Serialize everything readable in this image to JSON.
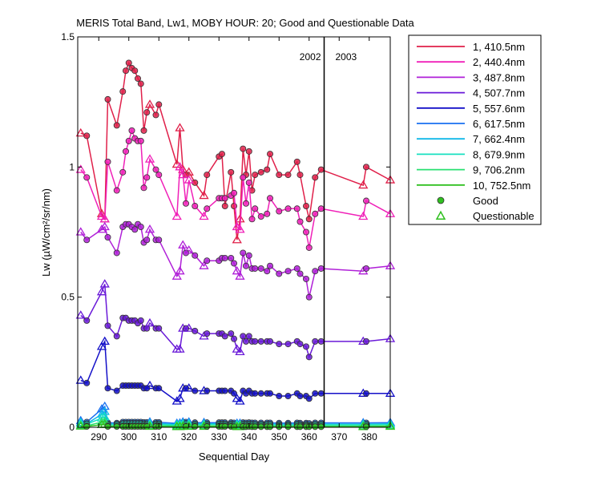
{
  "chart_data": {
    "type": "line",
    "title": "MERIS Total Band,  Lw1, MOBY HOUR: 20;  Good and Questionable Data",
    "xlabel": "Sequential Day",
    "ylabel": "Lw (µW/cm²/sr/nm)",
    "xlim": [
      283,
      387
    ],
    "ylim": [
      0,
      1.5
    ],
    "xticks": [
      290,
      300,
      310,
      320,
      330,
      340,
      350,
      360,
      370,
      380
    ],
    "xtick_labels": [
      "290",
      "300",
      "310",
      "320",
      "330",
      "340",
      "350",
      "360",
      "370",
      "380"
    ],
    "yticks": [
      0,
      0.5,
      1,
      1.5
    ],
    "ytick_labels": [
      "0",
      "0.5",
      "1",
      "1.5"
    ],
    "year_boundary": {
      "x": 365,
      "left_label": "2002",
      "right_label": "2003"
    },
    "x": [
      284,
      286,
      291,
      292,
      293,
      296,
      298,
      299,
      300,
      301,
      302,
      303,
      304,
      305,
      306,
      307,
      309,
      310,
      316,
      317,
      318,
      319,
      320,
      322,
      325,
      326,
      330,
      331,
      332,
      334,
      335,
      336,
      337,
      338,
      339,
      340,
      341,
      342,
      344,
      346,
      347,
      350,
      353,
      356,
      357,
      359,
      360,
      362,
      364,
      378,
      379,
      387
    ],
    "quality": [
      "Q",
      "G",
      "Q",
      "Q",
      "G",
      "G",
      "G",
      "G",
      "G",
      "G",
      "G",
      "G",
      "G",
      "G",
      "G",
      "Q",
      "G",
      "G",
      "Q",
      "Q",
      "Q",
      "G",
      "Q",
      "G",
      "Q",
      "G",
      "G",
      "G",
      "G",
      "G",
      "G",
      "Q",
      "Q",
      "G",
      "G",
      "G",
      "G",
      "G",
      "G",
      "G",
      "G",
      "G",
      "G",
      "G",
      "G",
      "G",
      "G",
      "G",
      "G",
      "Q",
      "G",
      "Q"
    ],
    "series": [
      {
        "name": "1, 410.5nm",
        "color": "#e0204a",
        "values": [
          1.13,
          1.12,
          0.82,
          0.8,
          1.26,
          1.16,
          1.29,
          1.37,
          1.4,
          1.38,
          1.37,
          1.34,
          1.32,
          1.14,
          1.21,
          1.24,
          1.2,
          1.24,
          1.01,
          1.15,
          0.99,
          0.97,
          0.98,
          0.94,
          0.89,
          0.97,
          1.04,
          1.05,
          0.85,
          0.98,
          0.85,
          0.72,
          0.8,
          1.07,
          0.97,
          1.06,
          0.91,
          0.97,
          0.98,
          0.99,
          1.05,
          0.97,
          0.97,
          1.02,
          0.97,
          0.85,
          0.8,
          0.96,
          0.99,
          0.93,
          1.0,
          0.95
        ]
      },
      {
        "name": "2, 440.4nm",
        "color": "#f020b8",
        "values": [
          0.99,
          0.96,
          0.81,
          0.8,
          1.02,
          0.91,
          0.98,
          1.06,
          1.1,
          1.14,
          1.11,
          1.1,
          1.1,
          0.92,
          0.96,
          1.03,
          0.99,
          0.97,
          0.81,
          1.0,
          0.97,
          0.86,
          0.95,
          0.85,
          0.81,
          0.84,
          0.88,
          0.88,
          0.88,
          0.89,
          0.9,
          0.77,
          0.76,
          0.96,
          0.86,
          0.94,
          0.8,
          0.84,
          0.81,
          0.82,
          0.88,
          0.83,
          0.84,
          0.84,
          0.79,
          0.75,
          0.69,
          0.82,
          0.84,
          0.81,
          0.87,
          0.82
        ]
      },
      {
        "name": "3, 487.8nm",
        "color": "#b020d8",
        "values": [
          0.75,
          0.72,
          0.76,
          0.77,
          0.73,
          0.67,
          0.77,
          0.78,
          0.78,
          0.77,
          0.76,
          0.78,
          0.77,
          0.71,
          0.72,
          0.76,
          0.72,
          0.72,
          0.58,
          0.6,
          0.7,
          0.67,
          0.68,
          0.66,
          0.62,
          0.64,
          0.64,
          0.65,
          0.65,
          0.65,
          0.63,
          0.6,
          0.58,
          0.67,
          0.62,
          0.66,
          0.61,
          0.61,
          0.61,
          0.6,
          0.62,
          0.59,
          0.6,
          0.61,
          0.59,
          0.57,
          0.5,
          0.6,
          0.61,
          0.6,
          0.61,
          0.62
        ]
      },
      {
        "name": "4, 507.7nm",
        "color": "#6a1ad8",
        "values": [
          0.43,
          0.41,
          0.52,
          0.55,
          0.39,
          0.35,
          0.42,
          0.42,
          0.41,
          0.41,
          0.41,
          0.4,
          0.41,
          0.38,
          0.38,
          0.4,
          0.38,
          0.38,
          0.3,
          0.3,
          0.38,
          0.38,
          0.38,
          0.37,
          0.35,
          0.36,
          0.36,
          0.36,
          0.35,
          0.36,
          0.34,
          0.3,
          0.29,
          0.35,
          0.33,
          0.35,
          0.33,
          0.33,
          0.33,
          0.33,
          0.33,
          0.32,
          0.32,
          0.33,
          0.32,
          0.31,
          0.27,
          0.33,
          0.33,
          0.33,
          0.33,
          0.34
        ]
      },
      {
        "name": "5, 557.6nm",
        "color": "#1410c8",
        "values": [
          0.18,
          0.17,
          0.31,
          0.33,
          0.15,
          0.14,
          0.16,
          0.16,
          0.16,
          0.16,
          0.16,
          0.16,
          0.16,
          0.15,
          0.15,
          0.16,
          0.15,
          0.15,
          0.1,
          0.11,
          0.15,
          0.15,
          0.15,
          0.14,
          0.14,
          0.14,
          0.14,
          0.14,
          0.14,
          0.14,
          0.13,
          0.11,
          0.1,
          0.14,
          0.13,
          0.14,
          0.13,
          0.13,
          0.13,
          0.13,
          0.13,
          0.12,
          0.12,
          0.13,
          0.12,
          0.12,
          0.11,
          0.13,
          0.13,
          0.13,
          0.13,
          0.13
        ]
      },
      {
        "name": "6, 617.5nm",
        "color": "#1870f0",
        "values": [
          0.025,
          0.02,
          0.07,
          0.08,
          0.018,
          0.016,
          0.02,
          0.02,
          0.02,
          0.02,
          0.02,
          0.02,
          0.02,
          0.019,
          0.019,
          0.02,
          0.019,
          0.019,
          0.015,
          0.016,
          0.02,
          0.02,
          0.02,
          0.018,
          0.018,
          0.018,
          0.018,
          0.018,
          0.018,
          0.018,
          0.017,
          0.015,
          0.015,
          0.018,
          0.017,
          0.018,
          0.017,
          0.017,
          0.017,
          0.017,
          0.017,
          0.016,
          0.016,
          0.017,
          0.016,
          0.016,
          0.015,
          0.017,
          0.017,
          0.017,
          0.017,
          0.018
        ]
      },
      {
        "name": "7, 662.4nm",
        "color": "#10b8e8",
        "values": [
          0.018,
          0.014,
          0.05,
          0.06,
          0.013,
          0.012,
          0.015,
          0.015,
          0.015,
          0.015,
          0.015,
          0.015,
          0.015,
          0.014,
          0.014,
          0.015,
          0.014,
          0.014,
          0.011,
          0.012,
          0.015,
          0.015,
          0.015,
          0.013,
          0.013,
          0.013,
          0.013,
          0.013,
          0.013,
          0.013,
          0.012,
          0.011,
          0.011,
          0.013,
          0.012,
          0.013,
          0.012,
          0.012,
          0.012,
          0.012,
          0.012,
          0.011,
          0.011,
          0.012,
          0.011,
          0.011,
          0.01,
          0.012,
          0.012,
          0.012,
          0.012,
          0.013
        ]
      },
      {
        "name": "8, 679.9nm",
        "color": "#18e0c0",
        "values": [
          0.015,
          0.012,
          0.035,
          0.04,
          0.011,
          0.01,
          0.012,
          0.012,
          0.012,
          0.012,
          0.012,
          0.012,
          0.012,
          0.011,
          0.011,
          0.012,
          0.011,
          0.011,
          0.009,
          0.01,
          0.012,
          0.012,
          0.012,
          0.011,
          0.011,
          0.011,
          0.011,
          0.011,
          0.011,
          0.011,
          0.01,
          0.009,
          0.009,
          0.011,
          0.01,
          0.011,
          0.01,
          0.01,
          0.01,
          0.01,
          0.01,
          0.009,
          0.009,
          0.01,
          0.009,
          0.009,
          0.008,
          0.01,
          0.01,
          0.01,
          0.01,
          0.011
        ]
      },
      {
        "name": "9, 706.2nm",
        "color": "#28e070",
        "values": [
          0.008,
          0.006,
          0.02,
          0.022,
          0.006,
          0.005,
          0.006,
          0.006,
          0.006,
          0.006,
          0.006,
          0.006,
          0.006,
          0.006,
          0.006,
          0.006,
          0.006,
          0.006,
          0.005,
          0.005,
          0.006,
          0.006,
          0.006,
          0.006,
          0.006,
          0.006,
          0.006,
          0.006,
          0.006,
          0.006,
          0.005,
          0.005,
          0.005,
          0.006,
          0.005,
          0.006,
          0.005,
          0.005,
          0.005,
          0.005,
          0.005,
          0.005,
          0.005,
          0.005,
          0.005,
          0.005,
          0.004,
          0.005,
          0.005,
          0.005,
          0.005,
          0.006
        ]
      },
      {
        "name": "10, 752.5nm",
        "color": "#30c020",
        "values": [
          0.004,
          0.003,
          0.01,
          0.012,
          0.003,
          0.003,
          0.003,
          0.003,
          0.003,
          0.003,
          0.003,
          0.003,
          0.003,
          0.003,
          0.003,
          0.003,
          0.003,
          0.003,
          0.002,
          0.002,
          0.003,
          0.003,
          0.003,
          0.003,
          0.003,
          0.003,
          0.003,
          0.003,
          0.003,
          0.003,
          0.002,
          0.002,
          0.002,
          0.003,
          0.002,
          0.003,
          0.002,
          0.002,
          0.002,
          0.002,
          0.002,
          0.002,
          0.002,
          0.002,
          0.002,
          0.002,
          0.002,
          0.002,
          0.002,
          0.002,
          0.002,
          0.003
        ]
      }
    ],
    "legend": {
      "position": "right",
      "markers": [
        {
          "label": "Good",
          "symbol": "circle",
          "color": "#30c020"
        },
        {
          "label": "Questionable",
          "symbol": "triangle",
          "color": "#30c020"
        }
      ]
    }
  }
}
